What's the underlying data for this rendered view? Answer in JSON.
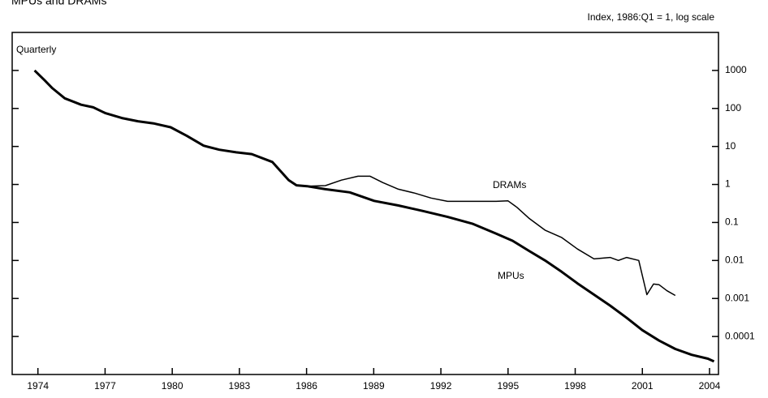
{
  "chart_data": {
    "type": "line",
    "title": "MPUs and DRAMs",
    "y_label": "Index, 1986:Q1 = 1, log scale",
    "annotation": "Quarterly",
    "log_scale": true,
    "xlim": [
      1972.85,
      2004.4
    ],
    "xticks": [
      1974,
      1977,
      1980,
      1983,
      1986,
      1989,
      1992,
      1995,
      1998,
      2001,
      2004
    ],
    "ylim": [
      1e-05,
      10000
    ],
    "yticks": [
      1000,
      100,
      10,
      1,
      0.1,
      0.01,
      0.001,
      0.0001
    ],
    "series": [
      {
        "name": "MPUs",
        "color": "#000000",
        "x": [
          1973.85,
          1974.3,
          1974.65,
          1975.2,
          1975.93,
          1976.47,
          1977.0,
          1977.75,
          1978.47,
          1979.2,
          1979.93,
          1980.65,
          1981.4,
          1982.1,
          1982.85,
          1983.55,
          1984.47,
          1985.2,
          1985.55,
          1986.03,
          1986.84,
          1987.93,
          1989.02,
          1990.1,
          1991.2,
          1992.3,
          1993.4,
          1994.47,
          1995.2,
          1995.93,
          1996.65,
          1997.4,
          1998.1,
          1998.84,
          1999.56,
          2000.3,
          2001.0,
          2001.75,
          2002.47,
          2003.2,
          2003.93,
          2004.2
        ],
        "values": [
          1000,
          550,
          340,
          185,
          125,
          107,
          76,
          56,
          46,
          40,
          32,
          19,
          10.5,
          8.2,
          7,
          6.3,
          3.9,
          1.3,
          0.95,
          0.9,
          0.75,
          0.62,
          0.37,
          0.28,
          0.2,
          0.14,
          0.093,
          0.051,
          0.033,
          0.018,
          0.01,
          0.005,
          0.0025,
          0.00126,
          0.00065,
          0.00031,
          0.000147,
          7.8e-05,
          4.7e-05,
          3.3e-05,
          2.6e-05,
          2.2e-05
        ]
      },
      {
        "name": "DRAMs",
        "color": "#000000",
        "x": [
          1986.03,
          1986.84,
          1987.56,
          1988.3,
          1988.84,
          1989.4,
          1990.1,
          1990.84,
          1991.56,
          1992.3,
          1993.0,
          1993.75,
          1994.47,
          1995.0,
          1995.4,
          1995.93,
          1996.65,
          1997.4,
          1998.1,
          1998.84,
          1999.56,
          1999.93,
          2000.3,
          2000.84,
          2001.2,
          2001.5,
          2001.75,
          2002.1,
          2002.47
        ],
        "values": [
          0.9,
          0.93,
          1.3,
          1.65,
          1.65,
          1.12,
          0.75,
          0.59,
          0.44,
          0.36,
          0.36,
          0.36,
          0.36,
          0.37,
          0.25,
          0.13,
          0.063,
          0.04,
          0.02,
          0.011,
          0.012,
          0.01,
          0.012,
          0.01,
          0.00126,
          0.0024,
          0.0023,
          0.0016,
          0.0012
        ]
      }
    ]
  }
}
